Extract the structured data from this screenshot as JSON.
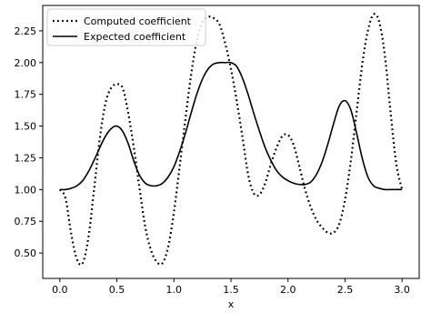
{
  "chart_data": {
    "type": "line",
    "title": "",
    "xlabel": "x",
    "ylabel": "",
    "xlim": [
      -0.15,
      3.15
    ],
    "ylim": [
      0.3,
      2.45
    ],
    "xticks": [
      "0.0",
      "0.5",
      "1.0",
      "1.5",
      "2.0",
      "2.5",
      "3.0"
    ],
    "yticks": [
      "0.50",
      "0.75",
      "1.00",
      "1.25",
      "1.50",
      "1.75",
      "2.00",
      "2.25"
    ],
    "grid": false,
    "legend_position": "top-left",
    "series": [
      {
        "name": "Computed coefficient",
        "style": "dotted",
        "color": "#000000",
        "x": [
          0.0,
          0.05,
          0.1,
          0.15,
          0.2,
          0.25,
          0.3,
          0.35,
          0.4,
          0.45,
          0.5,
          0.55,
          0.6,
          0.65,
          0.7,
          0.75,
          0.8,
          0.85,
          0.9,
          0.95,
          1.0,
          1.05,
          1.1,
          1.15,
          1.2,
          1.25,
          1.3,
          1.35,
          1.4,
          1.45,
          1.5,
          1.55,
          1.6,
          1.65,
          1.7,
          1.75,
          1.8,
          1.85,
          1.9,
          1.95,
          2.0,
          2.05,
          2.1,
          2.15,
          2.2,
          2.25,
          2.3,
          2.35,
          2.4,
          2.45,
          2.5,
          2.55,
          2.6,
          2.65,
          2.7,
          2.75,
          2.8,
          2.85,
          2.9,
          2.95,
          3.0
        ],
        "y": [
          1.0,
          0.93,
          0.65,
          0.45,
          0.42,
          0.62,
          1.0,
          1.4,
          1.68,
          1.8,
          1.83,
          1.8,
          1.6,
          1.32,
          1.0,
          0.7,
          0.52,
          0.43,
          0.42,
          0.55,
          0.82,
          1.18,
          1.55,
          1.9,
          2.17,
          2.32,
          2.36,
          2.35,
          2.3,
          2.15,
          1.95,
          1.7,
          1.42,
          1.12,
          0.97,
          0.96,
          1.05,
          1.2,
          1.33,
          1.42,
          1.43,
          1.35,
          1.18,
          1.0,
          0.86,
          0.76,
          0.7,
          0.66,
          0.66,
          0.73,
          0.92,
          1.22,
          1.6,
          1.98,
          2.25,
          2.38,
          2.32,
          2.05,
          1.6,
          1.2,
          1.0
        ]
      },
      {
        "name": "Expected coefficient",
        "style": "solid",
        "color": "#000000",
        "x": [
          0.0,
          0.05,
          0.1,
          0.15,
          0.2,
          0.25,
          0.3,
          0.35,
          0.4,
          0.45,
          0.5,
          0.55,
          0.6,
          0.65,
          0.7,
          0.75,
          0.8,
          0.85,
          0.9,
          0.95,
          1.0,
          1.05,
          1.1,
          1.15,
          1.2,
          1.25,
          1.3,
          1.35,
          1.4,
          1.45,
          1.5,
          1.55,
          1.6,
          1.65,
          1.7,
          1.75,
          1.8,
          1.85,
          1.9,
          1.95,
          2.0,
          2.05,
          2.1,
          2.15,
          2.2,
          2.25,
          2.3,
          2.35,
          2.4,
          2.45,
          2.5,
          2.55,
          2.6,
          2.65,
          2.7,
          2.75,
          2.8,
          2.85,
          2.9,
          2.95,
          3.0
        ],
        "y": [
          1.0,
          1.0,
          1.01,
          1.03,
          1.07,
          1.14,
          1.23,
          1.33,
          1.42,
          1.48,
          1.5,
          1.46,
          1.36,
          1.22,
          1.11,
          1.05,
          1.03,
          1.03,
          1.05,
          1.1,
          1.18,
          1.3,
          1.44,
          1.6,
          1.75,
          1.87,
          1.95,
          1.99,
          2.0,
          2.0,
          2.0,
          1.97,
          1.88,
          1.75,
          1.6,
          1.46,
          1.33,
          1.23,
          1.15,
          1.1,
          1.07,
          1.05,
          1.04,
          1.04,
          1.06,
          1.12,
          1.22,
          1.36,
          1.52,
          1.66,
          1.7,
          1.63,
          1.45,
          1.25,
          1.1,
          1.03,
          1.01,
          1.0,
          1.0,
          1.0,
          1.0
        ]
      }
    ]
  }
}
